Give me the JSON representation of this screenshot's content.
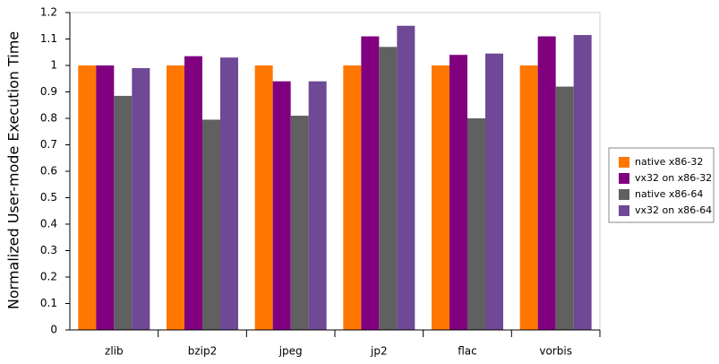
{
  "chart_data": {
    "type": "bar",
    "y_label": "Normalized User-mode Execution Time",
    "categories": [
      "zlib",
      "bzip2",
      "jpeg",
      "jp2",
      "flac",
      "vorbis"
    ],
    "series": [
      {
        "name": "native x86-32",
        "color": "#ff7700",
        "values": [
          1,
          1,
          1,
          1,
          1,
          1
        ]
      },
      {
        "name": "vx32 on x86-32",
        "color": "#800080",
        "values": [
          1,
          1.035,
          0.94,
          1.11,
          1.04,
          1.11
        ]
      },
      {
        "name": "native x86-64",
        "color": "#606060",
        "values": [
          0.885,
          0.795,
          0.81,
          1.07,
          0.8,
          0.92
        ]
      },
      {
        "name": "vx32 on x86-64",
        "color": "#6f4896",
        "values": [
          0.99,
          1.03,
          0.94,
          1.15,
          1.045,
          1.115
        ]
      }
    ],
    "ylim": [
      0,
      1.2
    ],
    "yticks": [
      0,
      0.1,
      0.2,
      0.3,
      0.4,
      0.5,
      0.6,
      0.7,
      0.8,
      0.9,
      1,
      1.1,
      1.2
    ],
    "grid": false,
    "legend": "right"
  }
}
